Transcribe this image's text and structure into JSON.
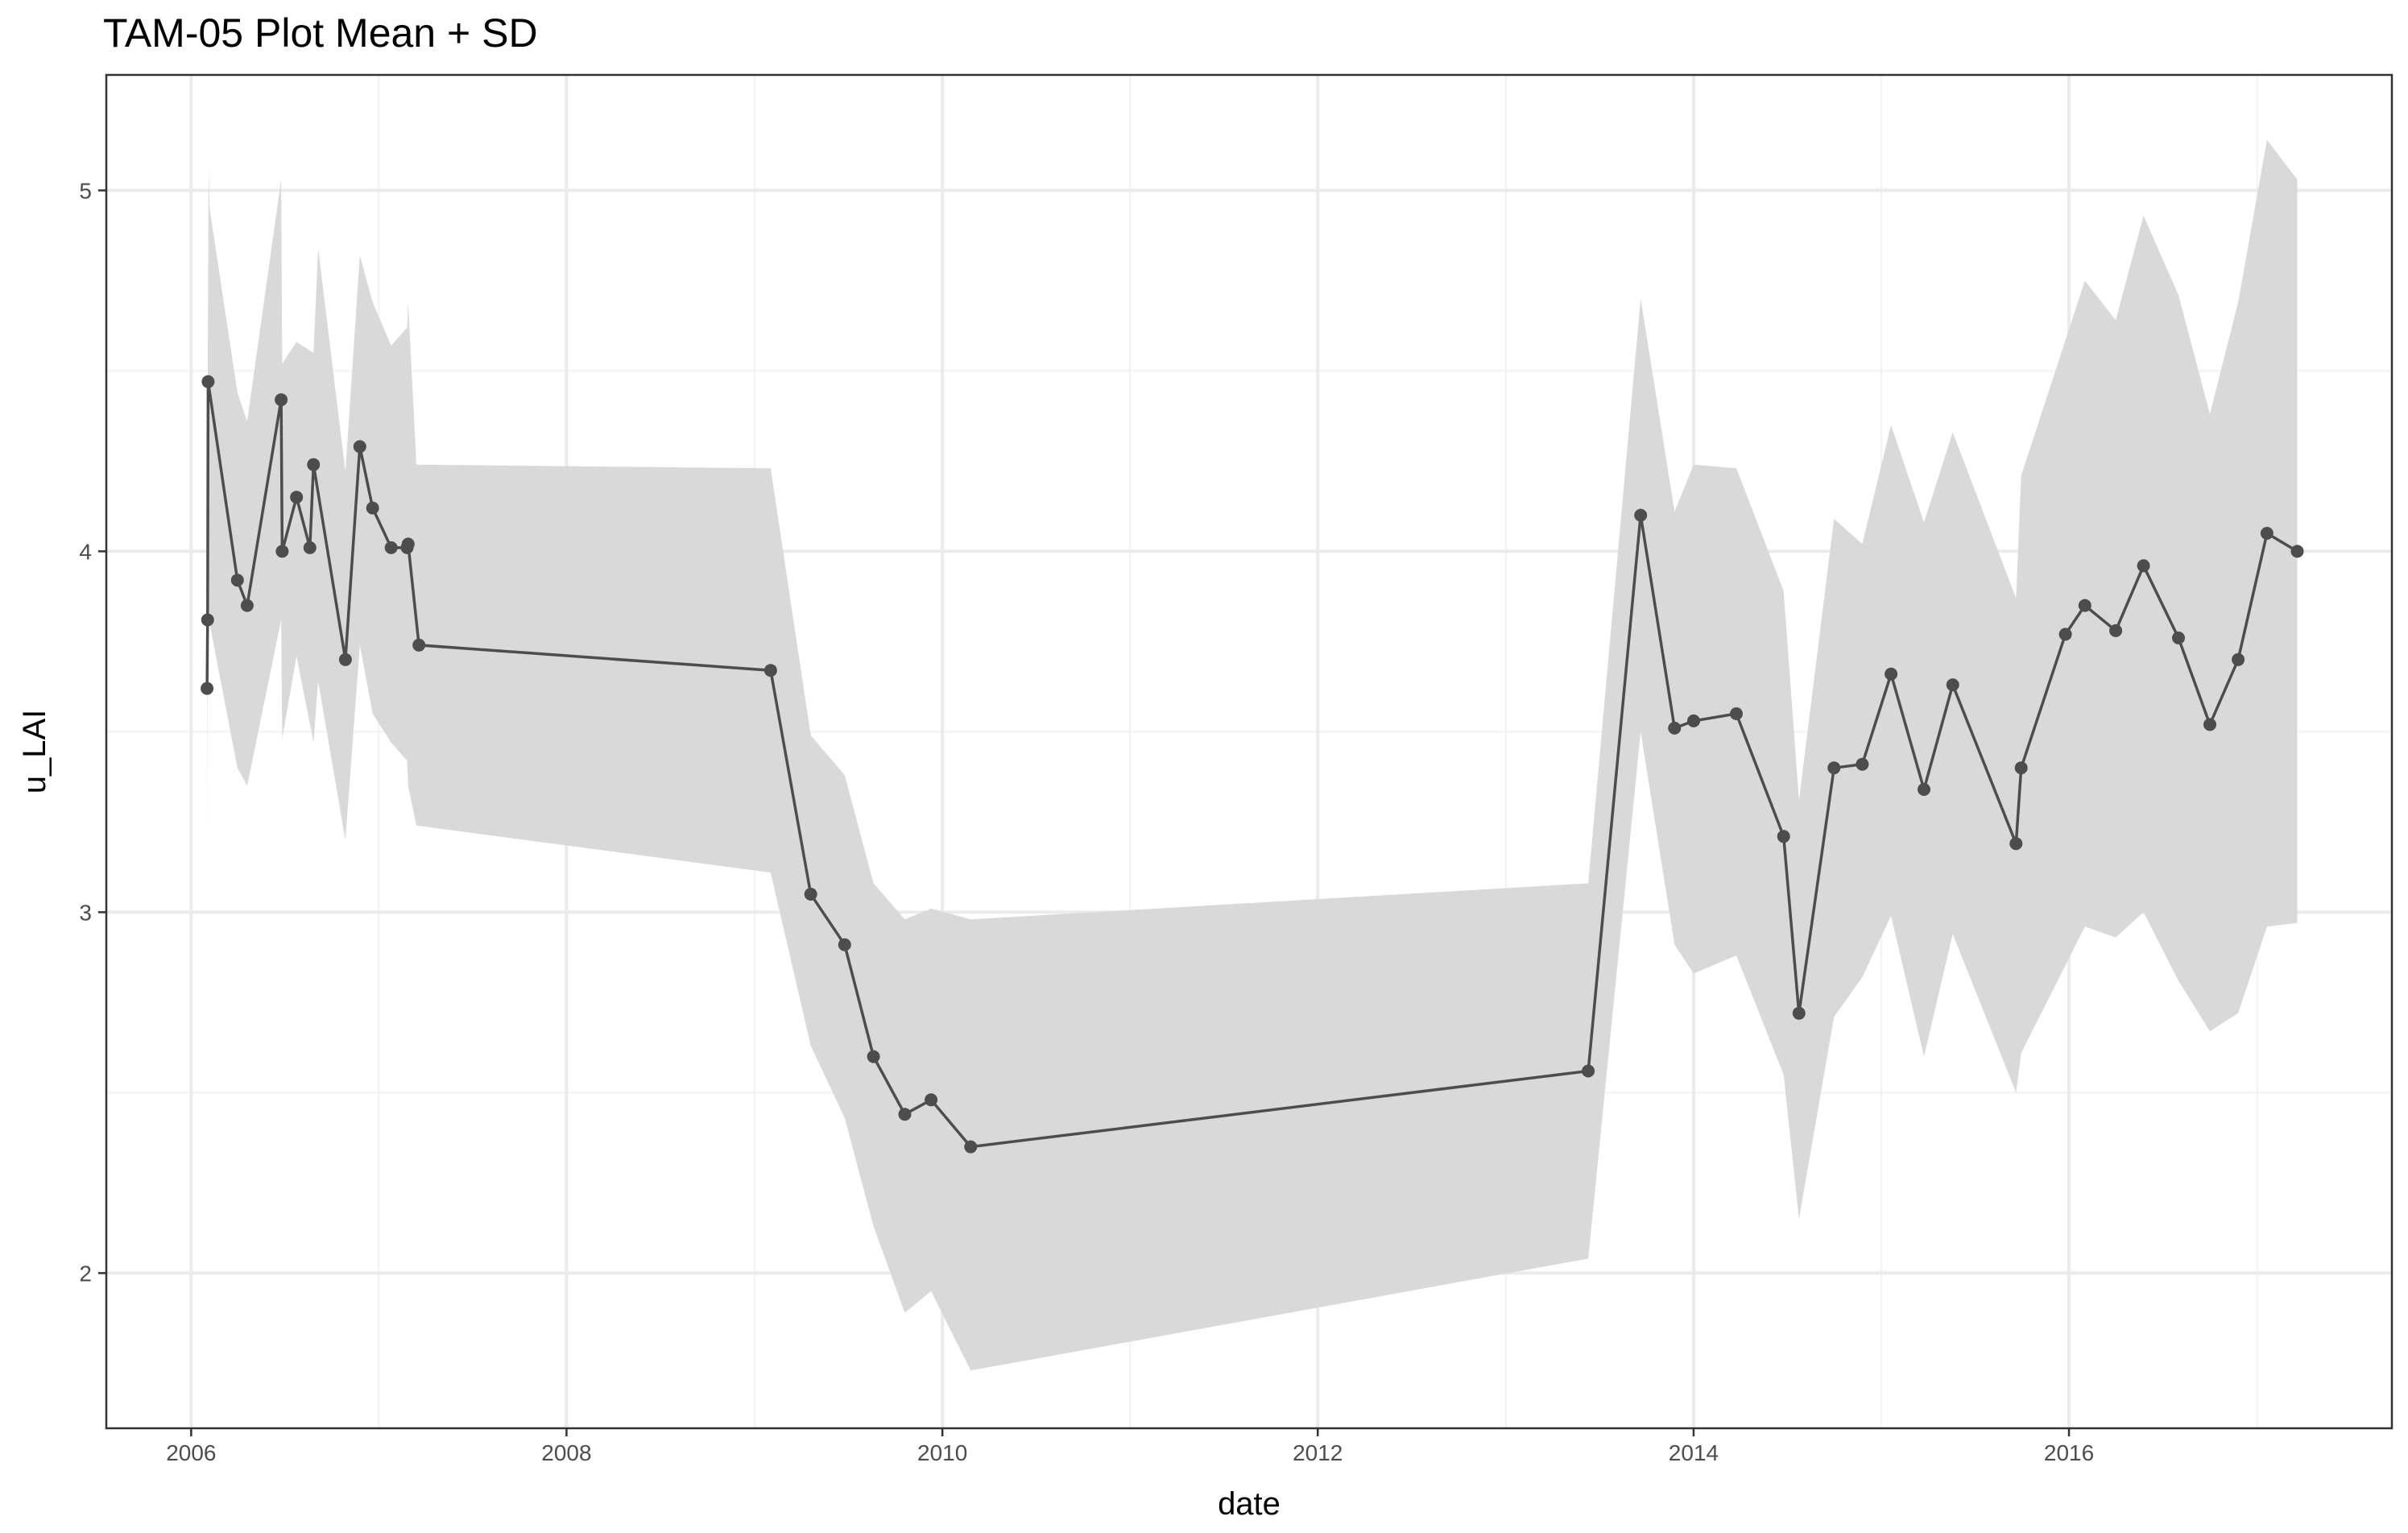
{
  "chart_data": {
    "type": "line",
    "title": "TAM-05 Plot Mean + SD",
    "xlabel": "date",
    "ylabel": "u_LAI",
    "xlim": [
      "2005-07-20",
      "2017-09-20"
    ],
    "ylim": [
      1.57,
      5.32
    ],
    "grid": true,
    "x_ticks": [
      "2006",
      "2008",
      "2010",
      "2012",
      "2014",
      "2016"
    ],
    "y_ticks": [
      "2",
      "3",
      "4",
      "5"
    ],
    "colors": {
      "line": "#4d4d4d",
      "point": "#4d4d4d",
      "band": "#d9d9d9",
      "grid_major": "#ebebeb",
      "grid_minor": "#f2f2f2",
      "panel_border": "#333333"
    },
    "band": {
      "name": "",
      "x": [
        "2006-02-01",
        "2006-02-02",
        "2006-02-04",
        "2006-02-06",
        "2006-04-01",
        "2006-04-20",
        "2006-06-25",
        "2006-06-27",
        "2006-07-25",
        "2006-08-27",
        "2006-09-05",
        "2006-10-28",
        "2006-11-25",
        "2006-12-20",
        "2007-01-25",
        "2007-02-25",
        "2007-02-27",
        "2007-03-15",
        "2009-02-01",
        "2009-04-20",
        "2009-06-25",
        "2009-08-20",
        "2009-10-20",
        "2009-12-10",
        "2010-02-25",
        "2013-06-10",
        "2013-09-20",
        "2013-11-25",
        "2014-01-01",
        "2014-03-25",
        "2014-06-25",
        "2014-07-25",
        "2014-10-01",
        "2014-11-25",
        "2015-01-20",
        "2015-03-25",
        "2015-05-20",
        "2015-09-20",
        "2015-09-30",
        "2016-02-01",
        "2016-04-01",
        "2016-05-25",
        "2016-08-01",
        "2016-10-01",
        "2016-11-25",
        "2017-01-20",
        "2017-03-20"
      ],
      "upper": [
        4.23,
        4.44,
        5.06,
        4.95,
        4.44,
        4.36,
        5.03,
        4.52,
        4.58,
        4.55,
        4.84,
        4.22,
        4.82,
        4.69,
        4.57,
        4.62,
        4.69,
        4.24,
        4.23,
        3.49,
        3.38,
        3.08,
        2.98,
        3.01,
        2.98,
        3.08,
        4.7,
        4.11,
        4.24,
        4.23,
        3.89,
        3.31,
        4.09,
        4.02,
        4.35,
        4.08,
        4.33,
        3.87,
        4.21,
        4.75,
        4.64,
        4.93,
        4.71,
        4.38,
        4.69,
        5.14,
        5.03
      ],
      "lower": [
        3.2,
        3.82,
        3.88,
        3.8,
        3.4,
        3.35,
        3.81,
        3.48,
        3.71,
        3.47,
        3.64,
        3.2,
        3.74,
        3.55,
        3.47,
        3.42,
        3.35,
        3.24,
        3.11,
        2.63,
        2.43,
        2.13,
        1.89,
        1.95,
        1.73,
        2.04,
        3.5,
        2.91,
        2.83,
        2.88,
        2.55,
        2.15,
        2.71,
        2.82,
        2.99,
        2.6,
        2.94,
        2.5,
        2.61,
        2.96,
        2.93,
        3.0,
        2.81,
        2.67,
        2.72,
        2.96,
        2.97
      ]
    },
    "series": [
      {
        "name": "",
        "x": [
          "2006-02-01",
          "2006-02-02",
          "2006-02-03",
          "2006-04-01",
          "2006-04-20",
          "2006-06-25",
          "2006-06-27",
          "2006-07-25",
          "2006-08-20",
          "2006-08-27",
          "2006-10-28",
          "2006-11-25",
          "2006-12-20",
          "2007-01-25",
          "2007-02-25",
          "2007-02-27",
          "2007-03-20",
          "2009-02-01",
          "2009-04-20",
          "2009-06-25",
          "2009-08-20",
          "2009-10-20",
          "2009-12-10",
          "2010-02-25",
          "2013-06-10",
          "2013-09-20",
          "2013-11-25",
          "2014-01-01",
          "2014-03-25",
          "2014-06-25",
          "2014-07-25",
          "2014-10-01",
          "2014-11-25",
          "2015-01-20",
          "2015-03-25",
          "2015-05-20",
          "2015-09-20",
          "2015-09-30",
          "2015-12-25",
          "2016-02-01",
          "2016-04-01",
          "2016-05-25",
          "2016-08-01",
          "2016-10-01",
          "2016-11-25",
          "2017-01-20",
          "2017-03-20"
        ],
        "y": [
          3.62,
          3.81,
          4.47,
          3.92,
          3.85,
          4.42,
          4.0,
          4.15,
          4.01,
          4.24,
          3.7,
          4.29,
          4.12,
          4.01,
          4.01,
          4.02,
          3.74,
          3.67,
          3.05,
          2.91,
          2.6,
          2.44,
          2.48,
          2.35,
          2.56,
          4.1,
          3.51,
          3.53,
          3.55,
          3.21,
          2.72,
          3.4,
          3.41,
          3.66,
          3.34,
          3.63,
          3.19,
          3.4,
          3.77,
          3.85,
          3.78,
          3.96,
          3.76,
          3.52,
          3.7,
          4.05,
          4.0
        ]
      }
    ]
  }
}
